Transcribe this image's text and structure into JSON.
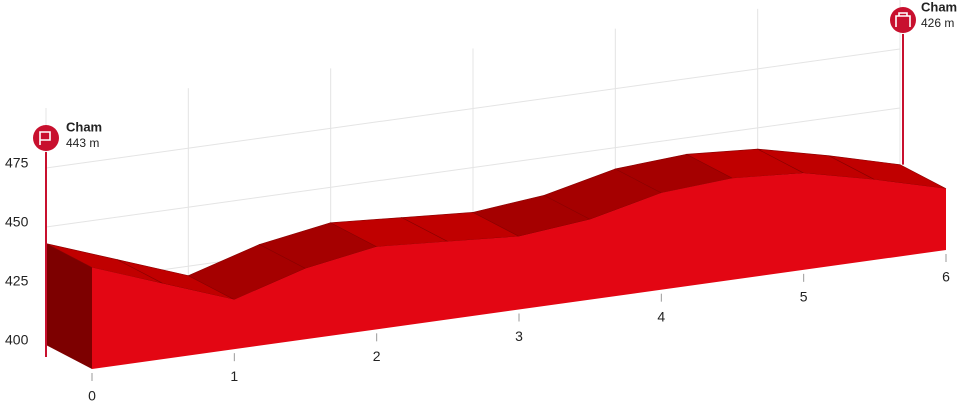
{
  "chart_data": {
    "type": "area",
    "x": [
      0,
      0.5,
      1,
      1.5,
      2,
      2.5,
      3,
      3.5,
      4,
      4.5,
      5,
      5.5,
      6
    ],
    "values": [
      443,
      432,
      421,
      430,
      435,
      433,
      431,
      434,
      441,
      443,
      441,
      434,
      426
    ],
    "color": "#e30613",
    "xlim": [
      0,
      6
    ],
    "xticks": [
      0,
      1,
      2,
      3,
      4,
      5,
      6
    ],
    "ylim": [
      400,
      475
    ],
    "yticks": [
      400,
      425,
      450,
      475
    ],
    "grid": true,
    "start": {
      "name": "Cham",
      "label": "443 m"
    },
    "finish": {
      "name": "Cham",
      "label": "426 m"
    }
  }
}
